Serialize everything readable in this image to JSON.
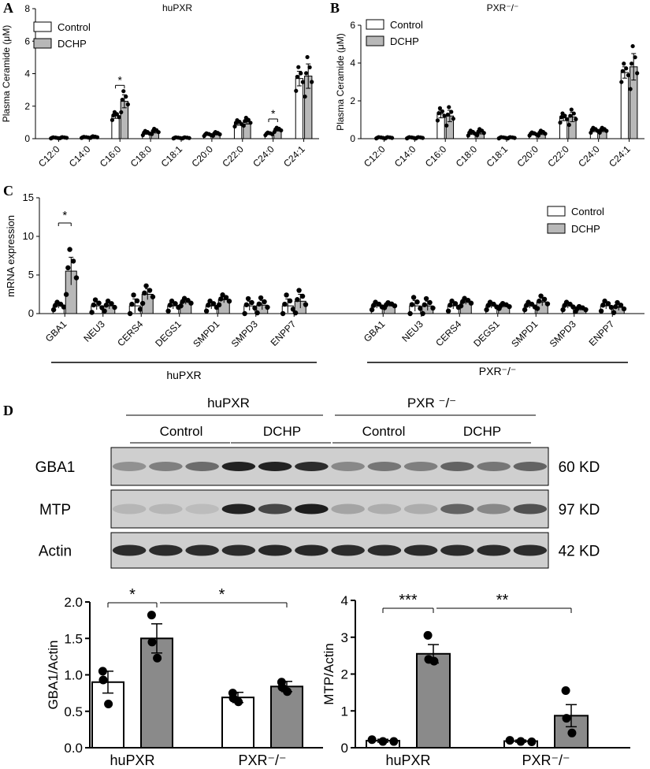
{
  "colors": {
    "control": "#ffffff",
    "dchp": "#b8b8b8",
    "dchp_wb": "#8a8a8a",
    "dot": "#000000"
  },
  "panels": {
    "A": {
      "letter": "A",
      "title": "huPXR",
      "ylabel": "Plasma Ceramide (μM)",
      "yticks": [
        "0",
        "2",
        "4",
        "6",
        "8"
      ],
      "ylim": [
        0,
        8
      ],
      "legend": [
        "Control",
        "DCHP"
      ],
      "categories": [
        "C12:0",
        "C14:0",
        "C16:0",
        "C18:0",
        "C18:1",
        "C20:0",
        "C22:0",
        "C24:0",
        "C24:1"
      ],
      "sig": [
        {
          "index": 2,
          "label": "*"
        },
        {
          "index": 7,
          "label": "*"
        }
      ]
    },
    "B": {
      "letter": "B",
      "title": "PXR⁻/⁻",
      "ylabel": "Plasma Ceramide (μM)",
      "yticks": [
        "0",
        "2",
        "4",
        "6"
      ],
      "ylim": [
        0,
        6
      ],
      "legend": [
        "Control",
        "DCHP"
      ],
      "categories": [
        "C12:0",
        "C14:0",
        "C16:0",
        "C18:0",
        "C18:1",
        "C20:0",
        "C22:0",
        "C24:0",
        "C24:1"
      ]
    },
    "C": {
      "letter": "C",
      "ylabel": "mRNA expression",
      "yticks": [
        "0",
        "5",
        "10",
        "15"
      ],
      "ylim": [
        0,
        15
      ],
      "legend": [
        "Control",
        "DCHP"
      ],
      "genes": [
        "GBA1",
        "NEU3",
        "CERS4",
        "DEGS1",
        "SMPD1",
        "SMPD3",
        "ENPP7"
      ],
      "groups": [
        "huPXR",
        "PXR⁻/⁻"
      ],
      "sig": [
        {
          "group": 0,
          "index": 0,
          "label": "*"
        }
      ]
    },
    "D": {
      "letter": "D",
      "header_groups": [
        "huPXR",
        "PXR ⁻/⁻"
      ],
      "header_sub": [
        "Control",
        "DCHP",
        "Control",
        "DCHP"
      ],
      "blots": [
        {
          "name": "GBA1",
          "size": "60 KD"
        },
        {
          "name": "MTP",
          "size": "97 KD"
        },
        {
          "name": "Actin",
          "size": "42 KD"
        }
      ],
      "bar_left": {
        "ylabel": "GBA1/Actin",
        "yticks": [
          "0.0",
          "0.5",
          "1.0",
          "1.5",
          "2.0"
        ],
        "ylim": [
          0,
          2
        ],
        "groups": [
          "huPXR",
          "PXR⁻/⁻"
        ],
        "sig": [
          {
            "label": "*"
          },
          {
            "label": "*"
          }
        ]
      },
      "bar_right": {
        "ylabel": "MTP/Actin",
        "yticks": [
          "0",
          "1",
          "2",
          "3",
          "4"
        ],
        "ylim": [
          0,
          4
        ],
        "groups": [
          "huPXR",
          "PXR⁻/⁻"
        ],
        "sig": [
          {
            "label": "***"
          },
          {
            "label": "**"
          }
        ]
      }
    }
  },
  "chart_data": [
    {
      "type": "bar",
      "panel": "A",
      "title": "huPXR",
      "ylabel": "Plasma Ceramide (μM)",
      "ylim": [
        0,
        8
      ],
      "categories": [
        "C12:0",
        "C14:0",
        "C16:0",
        "C18:0",
        "C18:1",
        "C20:0",
        "C22:0",
        "C24:0",
        "C24:1"
      ],
      "series": [
        {
          "name": "Control",
          "values": [
            0.05,
            0.08,
            1.4,
            0.35,
            0.05,
            0.25,
            0.95,
            0.3,
            3.7
          ],
          "errors": [
            0.02,
            0.02,
            0.15,
            0.08,
            0.02,
            0.05,
            0.12,
            0.05,
            0.45
          ]
        },
        {
          "name": "DCHP",
          "values": [
            0.06,
            0.1,
            2.3,
            0.45,
            0.05,
            0.3,
            1.05,
            0.55,
            3.85
          ],
          "errors": [
            0.02,
            0.03,
            0.4,
            0.1,
            0.02,
            0.07,
            0.15,
            0.08,
            0.75
          ]
        }
      ]
    },
    {
      "type": "bar",
      "panel": "B",
      "title": "PXR⁻/⁻",
      "ylabel": "Plasma Ceramide (μM)",
      "ylim": [
        0,
        6
      ],
      "categories": [
        "C12:0",
        "C14:0",
        "C16:0",
        "C18:0",
        "C18:1",
        "C20:0",
        "C22:0",
        "C24:0",
        "C24:1"
      ],
      "series": [
        {
          "name": "Control",
          "values": [
            0.05,
            0.05,
            1.3,
            0.3,
            0.05,
            0.25,
            1.1,
            0.45,
            3.5
          ],
          "errors": [
            0.02,
            0.02,
            0.2,
            0.08,
            0.02,
            0.05,
            0.15,
            0.08,
            0.3
          ]
        },
        {
          "name": "DCHP",
          "values": [
            0.05,
            0.05,
            1.2,
            0.35,
            0.05,
            0.3,
            1.15,
            0.45,
            3.8
          ],
          "errors": [
            0.02,
            0.02,
            0.3,
            0.1,
            0.02,
            0.08,
            0.25,
            0.08,
            0.7
          ]
        }
      ]
    },
    {
      "type": "bar",
      "panel": "C",
      "ylabel": "mRNA expression",
      "ylim": [
        0,
        15
      ],
      "categories": [
        "GBA1",
        "NEU3",
        "CERS4",
        "DEGS1",
        "SMPD1",
        "SMPD3",
        "ENPP7"
      ],
      "groups": [
        "huPXR",
        "PXR⁻/⁻"
      ],
      "series": [
        {
          "name": "Control",
          "group": "huPXR",
          "values": [
            1.0,
            1.0,
            1.0,
            1.0,
            1.0,
            1.0,
            1.0
          ],
          "errors": [
            0.3,
            0.5,
            0.9,
            0.4,
            0.4,
            0.6,
            0.9
          ]
        },
        {
          "name": "DCHP",
          "group": "huPXR",
          "values": [
            5.5,
            1.0,
            2.5,
            1.5,
            1.8,
            1.1,
            1.6
          ],
          "errors": [
            1.8,
            0.4,
            0.7,
            0.3,
            0.4,
            0.6,
            0.9
          ]
        },
        {
          "name": "Control",
          "group": "PXR⁻/⁻",
          "values": [
            1.0,
            1.0,
            1.0,
            1.0,
            1.0,
            1.0,
            1.0
          ],
          "errors": [
            0.3,
            0.7,
            0.4,
            0.3,
            0.3,
            0.3,
            0.4
          ]
        },
        {
          "name": "DCHP",
          "group": "PXR⁻/⁻",
          "values": [
            1.1,
            1.0,
            1.5,
            1.0,
            1.5,
            0.6,
            0.8
          ],
          "errors": [
            0.2,
            0.6,
            0.3,
            0.2,
            0.5,
            0.2,
            0.4
          ]
        }
      ]
    },
    {
      "type": "bar",
      "panel": "D-left",
      "ylabel": "GBA1/Actin",
      "ylim": [
        0,
        2
      ],
      "categories": [
        "huPXR",
        "PXR⁻/⁻"
      ],
      "series": [
        {
          "name": "Control",
          "values": [
            0.9,
            0.69
          ],
          "errors": [
            0.15,
            0.07
          ],
          "points": [
            [
              1.05,
              0.93,
              0.6
            ],
            [
              0.75,
              0.68,
              0.63
            ]
          ]
        },
        {
          "name": "DCHP",
          "values": [
            1.5,
            0.84
          ],
          "errors": [
            0.2,
            0.07
          ],
          "points": [
            [
              1.82,
              1.45,
              1.23
            ],
            [
              0.9,
              0.83,
              0.77
            ]
          ]
        }
      ]
    },
    {
      "type": "bar",
      "panel": "D-right",
      "ylabel": "MTP/Actin",
      "ylim": [
        0,
        4
      ],
      "categories": [
        "huPXR",
        "PXR⁻/⁻"
      ],
      "series": [
        {
          "name": "Control",
          "values": [
            0.19,
            0.18
          ],
          "errors": [
            0.04,
            0.03
          ],
          "points": [
            [
              0.22,
              0.17,
              0.17
            ],
            [
              0.2,
              0.17,
              0.16
            ]
          ]
        },
        {
          "name": "DCHP",
          "values": [
            2.55,
            0.87
          ],
          "errors": [
            0.25,
            0.3
          ],
          "points": [
            [
              3.05,
              2.4,
              2.35
            ],
            [
              1.55,
              0.8,
              0.4
            ]
          ]
        }
      ]
    }
  ]
}
